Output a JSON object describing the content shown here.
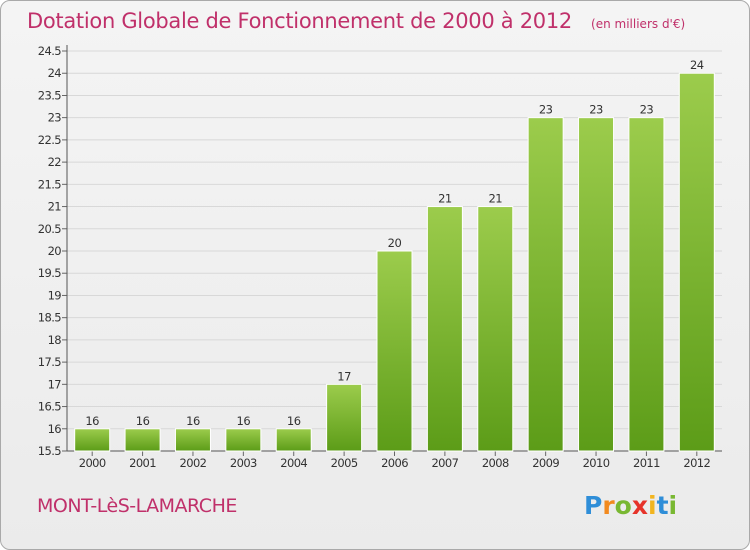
{
  "title": "Dotation Globale de Fonctionnement de 2000 à 2012",
  "unit": "(en milliers d'€)",
  "commune": "MONT-LèS-LAMARCHE",
  "logo": {
    "text": "Proxiti",
    "colors": [
      "#2f8ed8",
      "#f28a1f",
      "#79b832",
      "#e6332a",
      "#f2b51f",
      "#2f8ed8",
      "#79b832"
    ]
  },
  "colors": {
    "bar_top": "#9ccc4c",
    "bar_bottom": "#5c9c18",
    "title": "#c0306a",
    "grid": "#d8d8d8"
  },
  "chart_data": {
    "type": "bar",
    "categories": [
      "2000",
      "2001",
      "2002",
      "2003",
      "2004",
      "2005",
      "2006",
      "2007",
      "2008",
      "2009",
      "2010",
      "2011",
      "2012"
    ],
    "values": [
      16,
      16,
      16,
      16,
      16,
      17,
      20,
      21,
      21,
      23,
      23,
      23,
      24
    ],
    "data_labels": [
      "16",
      "16",
      "16",
      "16",
      "16",
      "17",
      "20",
      "21",
      "21",
      "23",
      "23",
      "23",
      "24"
    ],
    "xlabel": "",
    "ylabel": "",
    "ylim": [
      15.5,
      24.5
    ],
    "yticks": [
      "15.5",
      "16",
      "16.5",
      "17",
      "17.5",
      "18",
      "18.5",
      "19",
      "19.5",
      "20",
      "20.5",
      "21",
      "21.5",
      "22",
      "22.5",
      "23",
      "23.5",
      "24",
      "24.5"
    ],
    "grid": true,
    "legend": "none"
  }
}
